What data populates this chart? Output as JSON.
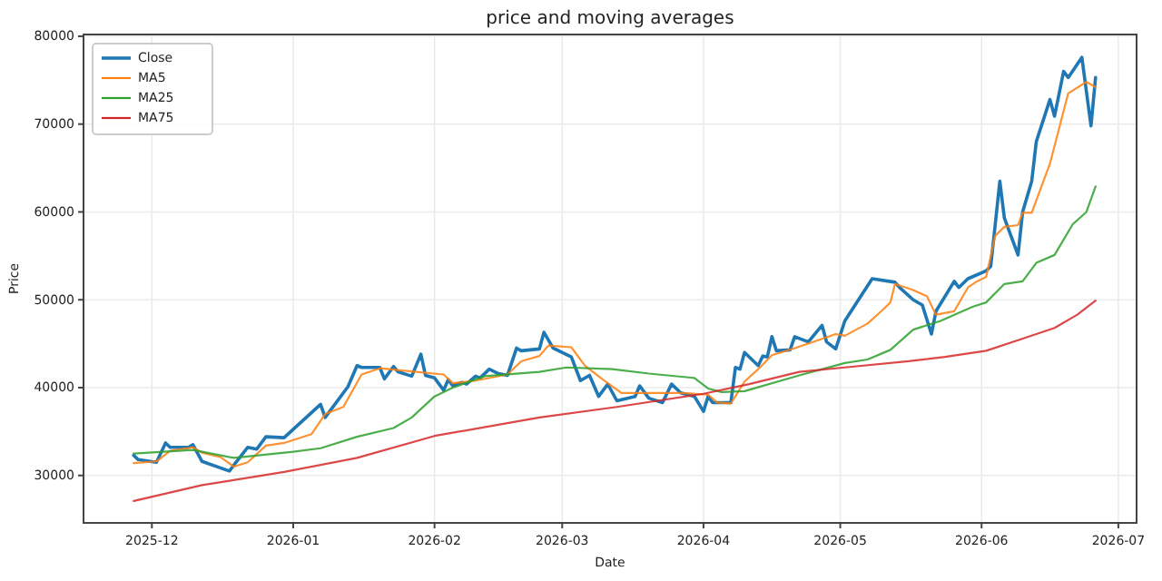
{
  "chart_data": {
    "type": "line",
    "title": "price and moving averages",
    "xlabel": "Date",
    "ylabel": "Price",
    "xlim": [
      "2025-11-16",
      "2026-07-05"
    ],
    "xticks": [
      "2025-12",
      "2026-01",
      "2026-02",
      "2026-03",
      "2026-04",
      "2026-05",
      "2026-06",
      "2026-07"
    ],
    "ylim": [
      24600,
      80200
    ],
    "yticks": [
      30000,
      40000,
      50000,
      60000,
      70000,
      80000
    ],
    "grid": true,
    "legend": "top left",
    "line_style": "solid",
    "marker": "none",
    "series": [
      {
        "name": "Close",
        "color": "#1f77b4",
        "x": [
          "2025-11-27",
          "2025-11-28",
          "2025-12-02",
          "2025-12-04",
          "2025-12-05",
          "2025-12-09",
          "2025-12-10",
          "2025-12-12",
          "2025-12-18",
          "2025-12-19",
          "2025-12-22",
          "2025-12-24",
          "2025-12-26",
          "2025-12-30",
          "2026-01-07",
          "2026-01-08",
          "2026-01-13",
          "2026-01-15",
          "2026-01-16",
          "2026-01-20",
          "2026-01-21",
          "2026-01-23",
          "2026-01-24",
          "2026-01-27",
          "2026-01-29",
          "2026-01-30",
          "2026-02-01",
          "2026-02-03",
          "2026-02-04",
          "2026-02-05",
          "2026-02-07",
          "2026-02-08",
          "2026-02-10",
          "2026-02-11",
          "2026-02-13",
          "2026-02-15",
          "2026-02-17",
          "2026-02-19",
          "2026-02-20",
          "2026-02-24",
          "2026-02-25",
          "2026-02-27",
          "2026-03-03",
          "2026-03-05",
          "2026-03-07",
          "2026-03-09",
          "2026-03-11",
          "2026-03-13",
          "2026-03-17",
          "2026-03-18",
          "2026-03-20",
          "2026-03-23",
          "2026-03-25",
          "2026-03-27",
          "2026-03-30",
          "2026-04-01",
          "2026-04-02",
          "2026-04-03",
          "2026-04-07",
          "2026-04-08",
          "2026-04-09",
          "2026-04-10",
          "2026-04-13",
          "2026-04-14",
          "2026-04-15",
          "2026-04-16",
          "2026-04-17",
          "2026-04-20",
          "2026-04-21",
          "2026-04-24",
          "2026-04-27",
          "2026-04-28",
          "2026-04-30",
          "2026-05-02",
          "2026-05-08",
          "2026-05-13",
          "2026-05-14",
          "2026-05-17",
          "2026-05-19",
          "2026-05-21",
          "2026-05-22",
          "2026-05-26",
          "2026-05-27",
          "2026-05-29",
          "2026-06-02",
          "2026-06-03",
          "2026-06-04",
          "2026-06-05",
          "2026-06-06",
          "2026-06-09",
          "2026-06-10",
          "2026-06-12",
          "2026-06-13",
          "2026-06-16",
          "2026-06-17",
          "2026-06-19",
          "2026-06-20",
          "2026-06-23",
          "2026-06-25",
          "2026-06-26"
        ],
        "values": [
          32300,
          31800,
          31500,
          33700,
          33200,
          33200,
          33500,
          31600,
          30500,
          31200,
          33200,
          33000,
          34400,
          34300,
          38100,
          36600,
          40100,
          42500,
          42300,
          42300,
          41000,
          42400,
          41800,
          41300,
          43800,
          41400,
          41100,
          39700,
          40900,
          40200,
          40600,
          40400,
          41300,
          41100,
          42100,
          41600,
          41400,
          44500,
          44200,
          44400,
          46300,
          44500,
          43500,
          40800,
          41400,
          39000,
          40400,
          38500,
          39000,
          40200,
          38800,
          38300,
          40400,
          39400,
          39000,
          37300,
          39000,
          38300,
          38300,
          42300,
          42100,
          44000,
          42500,
          43600,
          43500,
          45800,
          44200,
          44300,
          45800,
          45200,
          47100,
          45200,
          44400,
          47600,
          52400,
          52000,
          51400,
          50000,
          49400,
          46100,
          48700,
          52100,
          51400,
          52400,
          53300,
          53800,
          58600,
          63500,
          59300,
          55100,
          60000,
          63500,
          68000,
          72800,
          70900,
          76000,
          75300,
          77600,
          69800,
          75300
        ]
      },
      {
        "name": "MA5",
        "color": "#ff7f0e",
        "x": [
          "2025-11-27",
          "2025-12-02",
          "2025-12-05",
          "2025-12-10",
          "2025-12-12",
          "2025-12-16",
          "2025-12-19",
          "2025-12-22",
          "2025-12-26",
          "2025-12-30",
          "2026-01-05",
          "2026-01-08",
          "2026-01-12",
          "2026-01-16",
          "2026-01-20",
          "2026-01-28",
          "2026-02-03",
          "2026-02-05",
          "2026-02-10",
          "2026-02-17",
          "2026-02-20",
          "2026-02-24",
          "2026-02-26",
          "2026-03-03",
          "2026-03-06",
          "2026-03-10",
          "2026-03-14",
          "2026-03-17",
          "2026-03-23",
          "2026-03-27",
          "2026-04-02",
          "2026-04-04",
          "2026-04-07",
          "2026-04-10",
          "2026-04-13",
          "2026-04-16",
          "2026-04-21",
          "2026-04-25",
          "2026-04-30",
          "2026-05-02",
          "2026-05-07",
          "2026-05-10",
          "2026-05-12",
          "2026-05-13",
          "2026-05-17",
          "2026-05-20",
          "2026-05-22",
          "2026-05-26",
          "2026-05-29",
          "2026-05-31",
          "2026-06-02",
          "2026-06-04",
          "2026-06-06",
          "2026-06-09",
          "2026-06-10",
          "2026-06-12",
          "2026-06-16",
          "2026-06-20",
          "2026-06-24",
          "2026-06-26"
        ],
        "values": [
          31400,
          31600,
          32800,
          33200,
          32600,
          32100,
          31000,
          31500,
          33400,
          33700,
          34700,
          37000,
          37800,
          41500,
          42200,
          41800,
          41500,
          40500,
          40800,
          41500,
          43000,
          43600,
          44800,
          44600,
          42500,
          40900,
          39400,
          39400,
          39400,
          39400,
          39200,
          38300,
          38200,
          40700,
          42100,
          43700,
          44500,
          45200,
          46100,
          45900,
          47300,
          48700,
          49700,
          51800,
          51100,
          50400,
          48300,
          48700,
          51400,
          52100,
          52600,
          57300,
          58300,
          58500,
          59900,
          59900,
          65500,
          73500,
          74800,
          74200
        ]
      },
      {
        "name": "MA25",
        "color": "#2ca02c",
        "x": [
          "2025-11-27",
          "2025-12-10",
          "2025-12-19",
          "2026-01-01",
          "2026-01-07",
          "2026-01-15",
          "2026-01-23",
          "2026-01-27",
          "2026-02-01",
          "2026-02-05",
          "2026-02-12",
          "2026-02-24",
          "2026-03-02",
          "2026-03-12",
          "2026-03-20",
          "2026-03-30",
          "2026-04-02",
          "2026-04-05",
          "2026-04-10",
          "2026-04-22",
          "2026-05-02",
          "2026-05-07",
          "2026-05-12",
          "2026-05-17",
          "2026-05-23",
          "2026-05-30",
          "2026-06-02",
          "2026-06-06",
          "2026-06-10",
          "2026-06-13",
          "2026-06-17",
          "2026-06-21",
          "2026-06-24",
          "2026-06-26"
        ],
        "values": [
          32500,
          32900,
          32000,
          32700,
          33100,
          34400,
          35400,
          36600,
          39000,
          40000,
          41300,
          41800,
          42300,
          42100,
          41600,
          41100,
          39900,
          39500,
          39600,
          41400,
          42800,
          43200,
          44300,
          46600,
          47600,
          49200,
          49700,
          51800,
          52100,
          54200,
          55100,
          58600,
          60000,
          62900
        ]
      },
      {
        "name": "MA75",
        "color": "#d62728",
        "x": [
          "2025-11-27",
          "2025-12-12",
          "2025-12-30",
          "2026-01-15",
          "2026-02-01",
          "2026-02-24",
          "2026-03-13",
          "2026-04-01",
          "2026-04-11",
          "2026-04-22",
          "2026-05-02",
          "2026-05-16",
          "2026-05-24",
          "2026-06-02",
          "2026-06-09",
          "2026-06-17",
          "2026-06-22",
          "2026-06-26"
        ],
        "values": [
          27100,
          28900,
          30400,
          32000,
          34500,
          36600,
          37800,
          39300,
          40400,
          41800,
          42300,
          43000,
          43500,
          44200,
          45400,
          46800,
          48300,
          49900
        ]
      }
    ]
  }
}
